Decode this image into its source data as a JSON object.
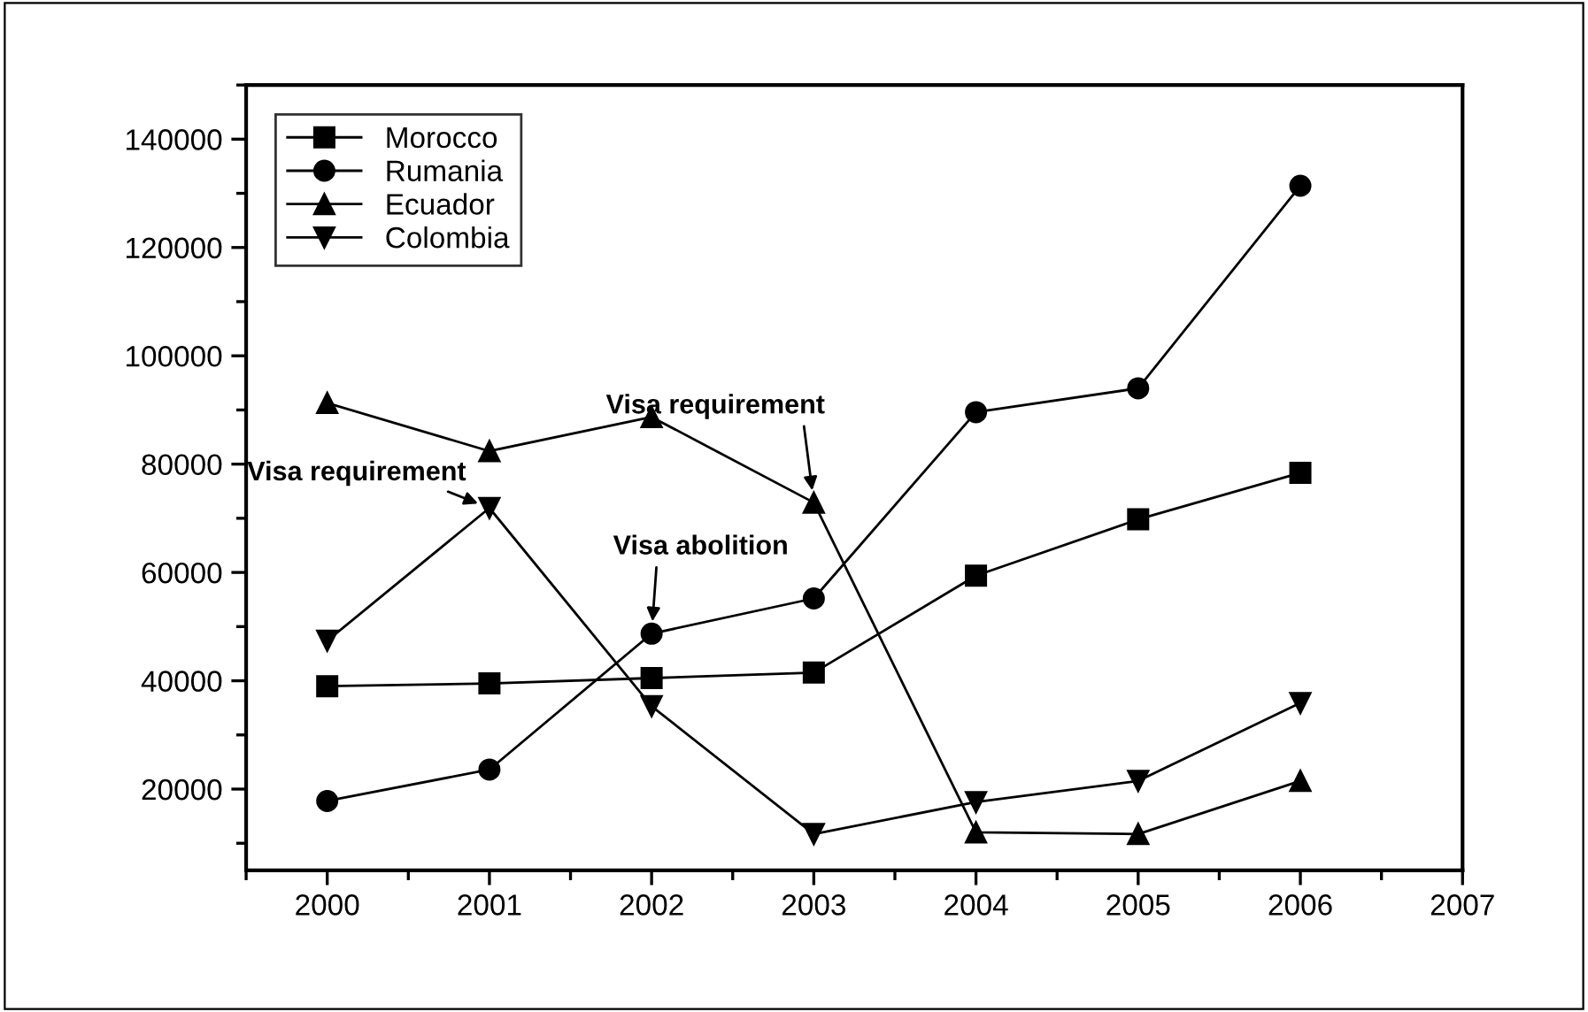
{
  "chart_data": {
    "type": "line",
    "x": [
      2000,
      2001,
      2002,
      2003,
      2004,
      2005,
      2006
    ],
    "series": [
      {
        "name": "Morocco",
        "color": "#000000",
        "marker": "square",
        "values": [
          39000,
          39500,
          40500,
          41500,
          59400,
          69800,
          78400
        ]
      },
      {
        "name": "Rumania",
        "color": "#000000",
        "marker": "circle",
        "values": [
          17800,
          23600,
          48700,
          55200,
          89600,
          94000,
          131400
        ]
      },
      {
        "name": "Ecuador",
        "color": "#000000",
        "marker": "triangle",
        "values": [
          91300,
          82400,
          88700,
          72900,
          12000,
          11700,
          21500
        ]
      },
      {
        "name": "Colombia",
        "color": "#000000",
        "marker": "triangle_down",
        "values": [
          47400,
          71900,
          35300,
          11700,
          17600,
          21500,
          35900
        ]
      }
    ],
    "xlim": [
      1999.5,
      2007
    ],
    "xticks": [
      2000,
      2001,
      2002,
      2003,
      2004,
      2005,
      2006,
      2007
    ],
    "ylim": [
      5000,
      150000
    ],
    "yticks": [
      20000,
      40000,
      60000,
      80000,
      100000,
      120000,
      140000
    ],
    "annotations": [
      {
        "text": "Visa requirement",
        "x": 2001,
        "y": 71900
      },
      {
        "text": "Visa abolition",
        "x": 2002,
        "y": 48700
      },
      {
        "text": "Visa requirement",
        "x": 2003,
        "y": 72900
      }
    ],
    "grid": false,
    "legend": "top left",
    "line_style": "solid"
  }
}
